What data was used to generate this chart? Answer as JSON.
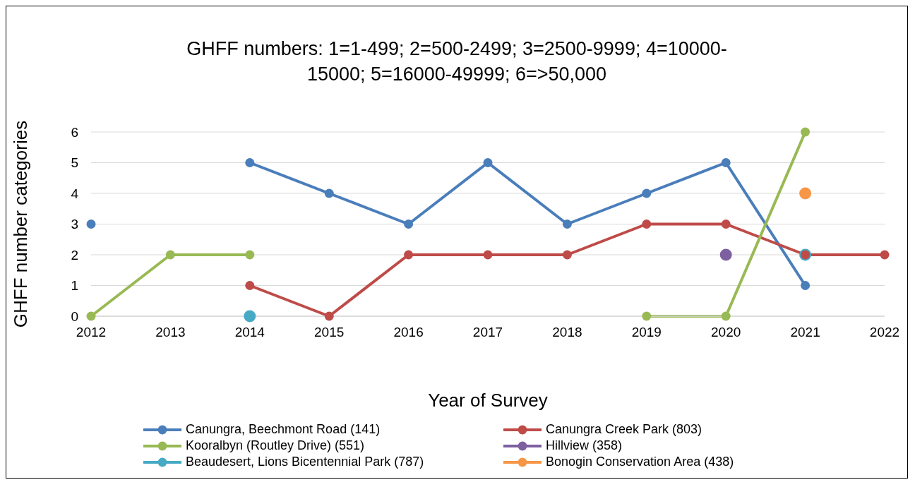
{
  "chart_data": {
    "type": "line",
    "title": "GHFF numbers: 1=1-499; 2=500-2499; 3=2500-9999; 4=10000-15000; 5=16000-49999; 6=>50,000",
    "xlabel": "Year of Survey",
    "ylabel": "GHFF number categories",
    "categories": [
      "2012",
      "2013",
      "2014",
      "2015",
      "2016",
      "2017",
      "2018",
      "2019",
      "2020",
      "2021",
      "2022"
    ],
    "series": [
      {
        "name": "Canungra, Beechmont Road (141)",
        "color": "#4a7ebb",
        "values": [
          3,
          null,
          5,
          4,
          3,
          5,
          3,
          4,
          5,
          1,
          null
        ]
      },
      {
        "name": "Canungra Creek Park (803)",
        "color": "#be4b48",
        "values": [
          null,
          null,
          1,
          0,
          2,
          2,
          2,
          3,
          3,
          2,
          2
        ]
      },
      {
        "name": "Kooralbyn (Routley Drive) (551)",
        "color": "#98b954",
        "values": [
          0,
          2,
          2,
          null,
          null,
          null,
          null,
          0,
          0,
          6,
          null
        ]
      },
      {
        "name": "Hillview (358)",
        "type": "scatter",
        "color": "#7d60a0",
        "values": [
          null,
          null,
          null,
          null,
          null,
          null,
          null,
          null,
          2,
          null,
          null
        ]
      },
      {
        "name": "Beaudesert, Lions Bicentennial Park (787)",
        "type": "scatter",
        "color": "#46aac5",
        "values": [
          null,
          null,
          0,
          null,
          null,
          null,
          null,
          null,
          null,
          2,
          null
        ]
      },
      {
        "name": "Bonogin Conservation Area (438)",
        "type": "scatter",
        "color": "#f79646",
        "values": [
          null,
          null,
          null,
          null,
          null,
          null,
          null,
          null,
          null,
          4,
          null
        ]
      }
    ],
    "ylim": [
      0,
      6
    ],
    "yticks": [
      0,
      1,
      2,
      3,
      4,
      5,
      6
    ],
    "grid": "y",
    "legend": "bottom",
    "marker": "circle",
    "line_style": "solid"
  }
}
